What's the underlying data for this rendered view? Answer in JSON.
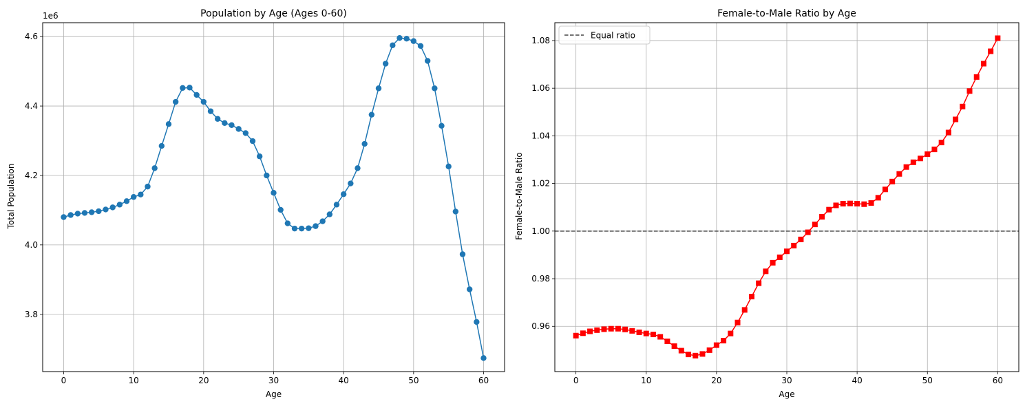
{
  "chart_data": [
    {
      "type": "line",
      "title": "Population by Age (Ages 0-60)",
      "xlabel": "Age",
      "ylabel": "Total Population",
      "y_offset_label": "1e6",
      "xlim": [
        -3,
        63
      ],
      "ylim": [
        3.635,
        4.64
      ],
      "xticks": [
        0,
        10,
        20,
        30,
        40,
        50,
        60
      ],
      "yticks": [
        3.8,
        4.0,
        4.2,
        4.4,
        4.6
      ],
      "grid": true,
      "color": "#1f77b4",
      "marker": "circle",
      "x": [
        0,
        1,
        2,
        3,
        4,
        5,
        6,
        7,
        8,
        9,
        10,
        11,
        12,
        13,
        14,
        15,
        16,
        17,
        18,
        19,
        20,
        21,
        22,
        23,
        24,
        25,
        26,
        27,
        28,
        29,
        30,
        31,
        32,
        33,
        34,
        35,
        36,
        37,
        38,
        39,
        40,
        41,
        42,
        43,
        44,
        45,
        46,
        47,
        48,
        49,
        50,
        51,
        52,
        53,
        54,
        55,
        56,
        57,
        58,
        59,
        60
      ],
      "y": [
        4.08,
        4.086,
        4.09,
        4.092,
        4.094,
        4.097,
        4.102,
        4.108,
        4.116,
        4.126,
        4.138,
        4.145,
        4.168,
        4.221,
        4.285,
        4.348,
        4.412,
        4.452,
        4.453,
        4.432,
        4.412,
        4.385,
        4.363,
        4.351,
        4.345,
        4.334,
        4.322,
        4.299,
        4.255,
        4.2,
        4.15,
        4.101,
        4.062,
        4.047,
        4.047,
        4.048,
        4.054,
        4.068,
        4.088,
        4.116,
        4.146,
        4.177,
        4.221,
        4.291,
        4.375,
        4.451,
        4.522,
        4.575,
        4.596,
        4.594,
        4.587,
        4.573,
        4.53,
        4.451,
        4.343,
        4.226,
        4.096,
        3.973,
        3.872,
        3.778,
        3.674
      ]
    },
    {
      "type": "line",
      "title": "Female-to-Male Ratio by Age",
      "xlabel": "Age",
      "ylabel": "Female-to-Male Ratio",
      "xlim": [
        -3,
        63
      ],
      "ylim": [
        0.941,
        1.0875
      ],
      "xticks": [
        0,
        10,
        20,
        30,
        40,
        50,
        60
      ],
      "yticks": [
        0.96,
        0.98,
        1.0,
        1.02,
        1.04,
        1.06,
        1.08
      ],
      "grid": true,
      "color": "#ff0000",
      "marker": "square",
      "reference_line": {
        "y": 1.0,
        "label": "Equal ratio",
        "color": "#444444",
        "style": "dashed"
      },
      "legend": {
        "entries": [
          "Equal ratio"
        ],
        "placement": "top-left"
      },
      "x": [
        0,
        1,
        2,
        3,
        4,
        5,
        6,
        7,
        8,
        9,
        10,
        11,
        12,
        13,
        14,
        15,
        16,
        17,
        18,
        19,
        20,
        21,
        22,
        23,
        24,
        25,
        26,
        27,
        28,
        29,
        30,
        31,
        32,
        33,
        34,
        35,
        36,
        37,
        38,
        39,
        40,
        41,
        42,
        43,
        44,
        45,
        46,
        47,
        48,
        49,
        50,
        51,
        52,
        53,
        54,
        55,
        56,
        57,
        58,
        59,
        60
      ],
      "y": [
        0.9561,
        0.9571,
        0.9579,
        0.9584,
        0.9588,
        0.959,
        0.959,
        0.9587,
        0.9581,
        0.9575,
        0.957,
        0.9566,
        0.9556,
        0.9537,
        0.9517,
        0.9498,
        0.9482,
        0.9477,
        0.9484,
        0.95,
        0.9521,
        0.954,
        0.957,
        0.9616,
        0.9669,
        0.9725,
        0.9781,
        0.9831,
        0.9867,
        0.989,
        0.9915,
        0.9939,
        0.9965,
        0.9995,
        1.0028,
        1.006,
        1.009,
        1.0108,
        1.0115,
        1.0116,
        1.0115,
        1.0113,
        1.0118,
        1.014,
        1.0175,
        1.0208,
        1.024,
        1.0269,
        1.0289,
        1.0305,
        1.0323,
        1.0343,
        1.0372,
        1.0414,
        1.0469,
        1.0523,
        1.0588,
        1.0647,
        1.0703,
        1.0755,
        1.081
      ]
    }
  ]
}
